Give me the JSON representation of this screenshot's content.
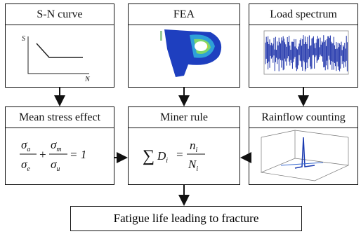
{
  "nodes": [
    {
      "label": "S-N curve",
      "axis_y": "S",
      "axis_x": "N"
    },
    {
      "label": "FEA"
    },
    {
      "label": "Load spectrum"
    },
    {
      "label": "Mean stress effect",
      "formula": {
        "terms": [
          {
            "num": "σ",
            "num_sub": "a",
            "den": "σ",
            "den_sub": "e"
          },
          {
            "num": "σ",
            "num_sub": "m",
            "den": "σ",
            "den_sub": "u"
          }
        ],
        "operator": "+",
        "rhs": "= 1"
      }
    },
    {
      "label": "Miner rule",
      "formula": {
        "sum": "∑",
        "term": "D",
        "term_sub": "i",
        "eq": "=",
        "num": "n",
        "num_sub": "i",
        "den": "N",
        "den_sub": "i"
      }
    },
    {
      "label": "Rainflow counting"
    },
    {
      "label": "Fatigue life leading to fracture"
    }
  ]
}
